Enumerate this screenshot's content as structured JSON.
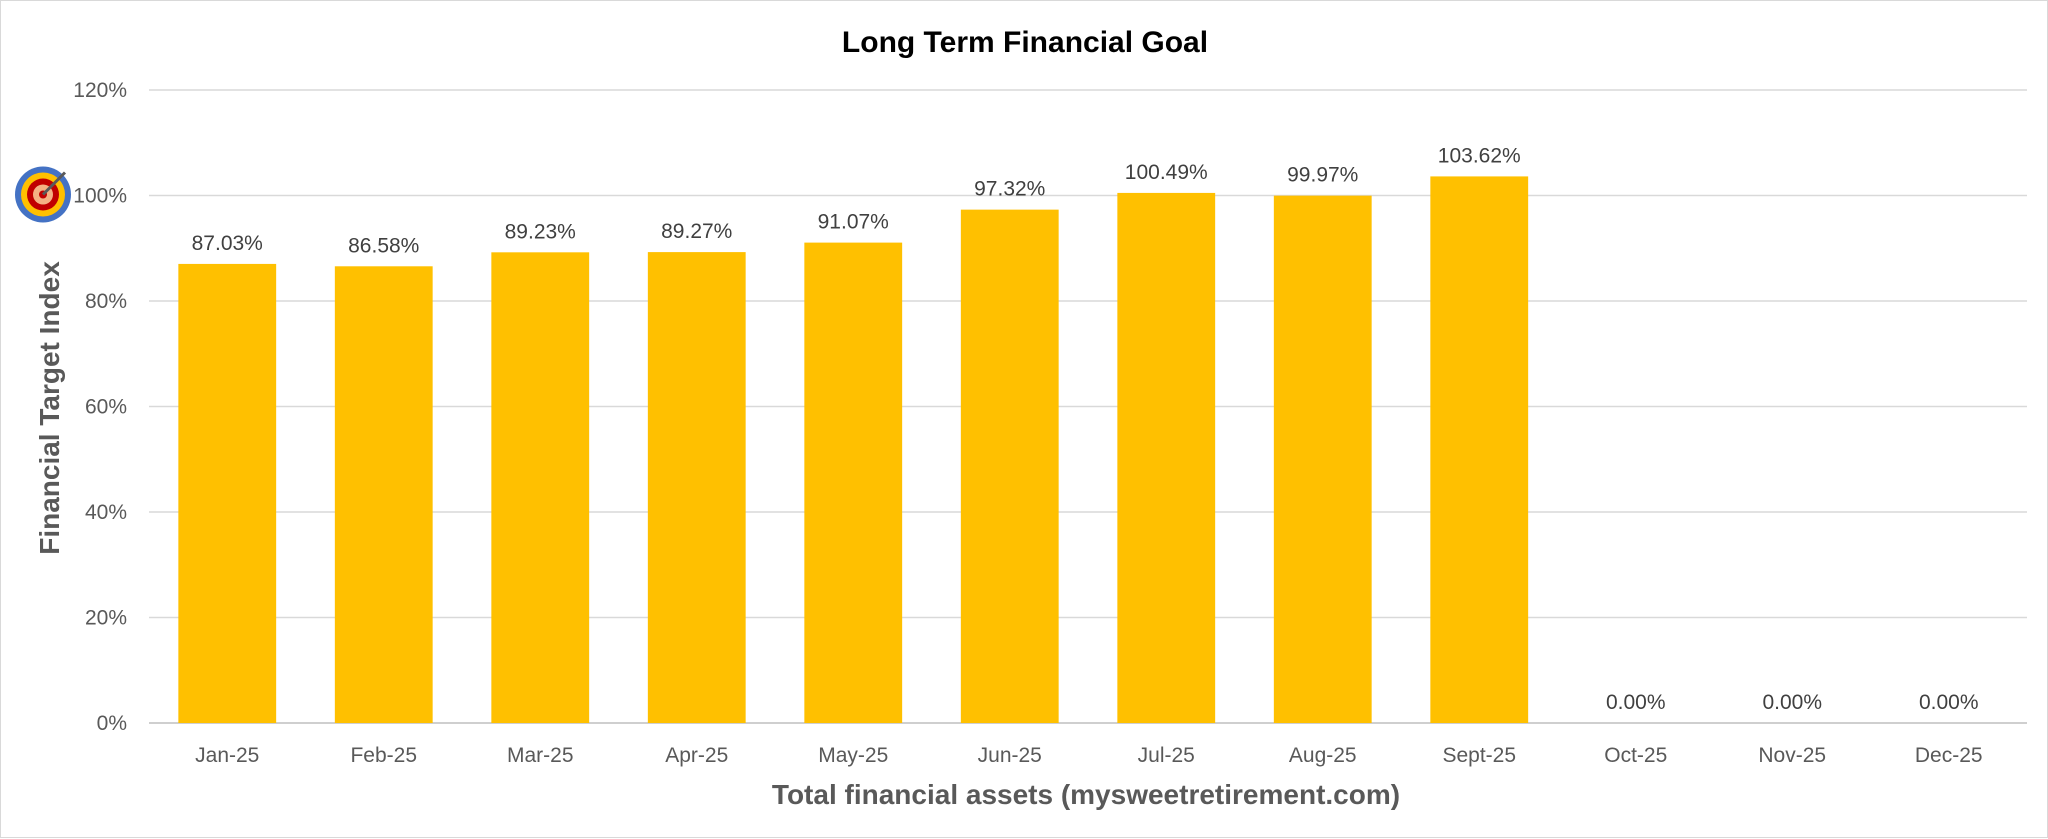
{
  "chart_data": {
    "type": "bar",
    "title": "Long Term Financial Goal",
    "xlabel": "Total financial assets (mysweetretirement.com)",
    "ylabel": "Financial Target Index",
    "categories": [
      "Jan-25",
      "Feb-25",
      "Mar-25",
      "Apr-25",
      "May-25",
      "Jun-25",
      "Jul-25",
      "Aug-25",
      "Sept-25",
      "Oct-25",
      "Nov-25",
      "Dec-25"
    ],
    "values": [
      87.03,
      86.58,
      89.23,
      89.27,
      91.07,
      97.32,
      100.49,
      99.97,
      103.62,
      0,
      0,
      0
    ],
    "data_labels": [
      "87.03%",
      "86.58%",
      "89.23%",
      "89.27%",
      "91.07%",
      "97.32%",
      "100.49%",
      "99.97%",
      "103.62%",
      "0.00%",
      "0.00%",
      "0.00%"
    ],
    "yticks": [
      "0%",
      "20%",
      "40%",
      "60%",
      "80%",
      "100%",
      "120%"
    ],
    "ylim": [
      0,
      120
    ],
    "grid": true,
    "legend": "none",
    "bar_color": "#FFC000",
    "target_marker": {
      "icon": "target-icon",
      "value": 100
    }
  }
}
